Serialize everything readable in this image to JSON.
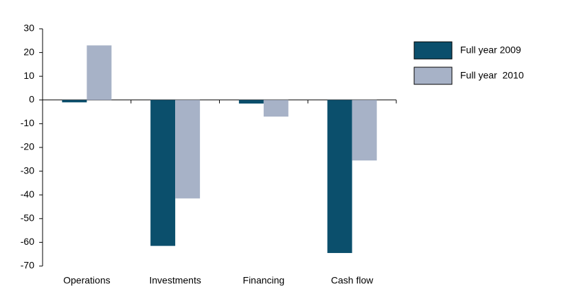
{
  "chart_data": {
    "type": "bar",
    "categories": [
      "Operations",
      "Investments",
      "Financing",
      "Cash flow"
    ],
    "series": [
      {
        "name": "Full year 2009",
        "color": "#0b4f6c",
        "values": [
          -1,
          -61.5,
          -1.5,
          -64.5
        ]
      },
      {
        "name": "Full year  2010",
        "color": "#a7b2c7",
        "values": [
          23,
          -41.5,
          -7,
          -25.5
        ]
      }
    ],
    "ylim": [
      -70,
      30
    ],
    "yticks": [
      -70,
      -60,
      -50,
      -40,
      -30,
      -20,
      -10,
      0,
      10,
      20,
      30
    ],
    "grid": false,
    "legend": "right"
  }
}
